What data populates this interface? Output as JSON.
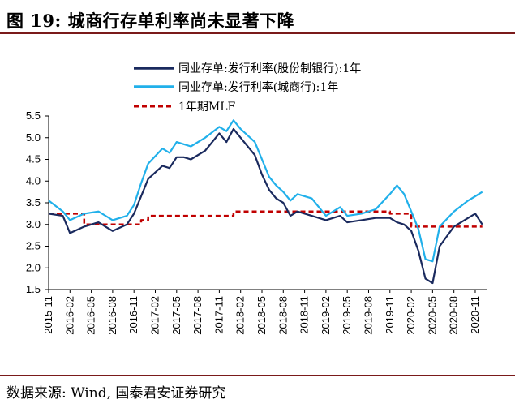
{
  "header": {
    "title": "图 19:  城商行存单利率尚未显著下降"
  },
  "footer": {
    "source": "数据来源:  Wind,  国泰君安证券研究"
  },
  "colors": {
    "navy": "#1a2a5e",
    "cyan": "#21b0ea",
    "mlf": "#c00000",
    "rule": "#7a1a1a"
  },
  "chart_data": {
    "type": "line",
    "title": "",
    "xlabel": "",
    "ylabel": "",
    "ylim": [
      1.5,
      5.5
    ],
    "yticks": [
      1.5,
      2.0,
      2.5,
      3.0,
      3.5,
      4.0,
      4.5,
      5.0,
      5.5
    ],
    "ytick_labels": [
      "1.5",
      "2.0",
      "2.5",
      "3.0",
      "3.5",
      "4.0",
      "4.5",
      "5.0",
      "5.5"
    ],
    "xticks": [
      "2015-11",
      "2016-02",
      "2016-05",
      "2016-08",
      "2016-11",
      "2017-02",
      "2017-05",
      "2017-08",
      "2017-11",
      "2018-02",
      "2018-05",
      "2018-08",
      "2018-11",
      "2019-02",
      "2019-05",
      "2019-08",
      "2019-11",
      "2020-02",
      "2020-05",
      "2020-08",
      "2020-11"
    ],
    "grid": false,
    "legend": "top-left",
    "series": [
      {
        "name": "同业存单:发行利率(股份制银行):1年",
        "color": "#1a2a5e",
        "style": "solid",
        "x": [
          "2015-11",
          "2016-01",
          "2016-02",
          "2016-04",
          "2016-06",
          "2016-08",
          "2016-10",
          "2016-11",
          "2016-12",
          "2017-01",
          "2017-03",
          "2017-04",
          "2017-05",
          "2017-06",
          "2017-07",
          "2017-09",
          "2017-11",
          "2017-12",
          "2018-01",
          "2018-02",
          "2018-04",
          "2018-05",
          "2018-06",
          "2018-07",
          "2018-08",
          "2018-09",
          "2018-10",
          "2018-12",
          "2019-02",
          "2019-04",
          "2019-05",
          "2019-07",
          "2019-09",
          "2019-11",
          "2019-12",
          "2020-01",
          "2020-02",
          "2020-03",
          "2020-04",
          "2020-05",
          "2020-06",
          "2020-08",
          "2020-10",
          "2020-11",
          "2020-12"
        ],
        "y": [
          3.25,
          3.2,
          2.8,
          2.95,
          3.05,
          2.85,
          3.0,
          3.25,
          3.65,
          4.05,
          4.35,
          4.3,
          4.55,
          4.55,
          4.5,
          4.7,
          5.1,
          4.9,
          5.2,
          5.0,
          4.6,
          4.15,
          3.8,
          3.6,
          3.5,
          3.2,
          3.3,
          3.2,
          3.1,
          3.2,
          3.05,
          3.1,
          3.15,
          3.15,
          3.05,
          3.0,
          2.85,
          2.4,
          1.75,
          1.65,
          2.5,
          2.95,
          3.15,
          3.25,
          3.0
        ]
      },
      {
        "name": "同业存单:发行利率(城商行):1年",
        "color": "#21b0ea",
        "style": "solid",
        "x": [
          "2015-11",
          "2016-01",
          "2016-02",
          "2016-04",
          "2016-06",
          "2016-08",
          "2016-10",
          "2016-11",
          "2016-12",
          "2017-01",
          "2017-03",
          "2017-04",
          "2017-05",
          "2017-06",
          "2017-07",
          "2017-09",
          "2017-11",
          "2017-12",
          "2018-01",
          "2018-02",
          "2018-04",
          "2018-05",
          "2018-06",
          "2018-07",
          "2018-08",
          "2018-09",
          "2018-10",
          "2018-12",
          "2019-02",
          "2019-04",
          "2019-05",
          "2019-07",
          "2019-09",
          "2019-11",
          "2019-12",
          "2020-01",
          "2020-02",
          "2020-03",
          "2020-04",
          "2020-05",
          "2020-06",
          "2020-08",
          "2020-10",
          "2020-11",
          "2020-12"
        ],
        "y": [
          3.55,
          3.3,
          3.1,
          3.25,
          3.3,
          3.1,
          3.2,
          3.45,
          3.95,
          4.4,
          4.75,
          4.65,
          4.9,
          4.85,
          4.8,
          5.0,
          5.25,
          5.15,
          5.4,
          5.2,
          4.9,
          4.5,
          4.1,
          3.9,
          3.75,
          3.55,
          3.7,
          3.6,
          3.2,
          3.4,
          3.2,
          3.25,
          3.35,
          3.7,
          3.9,
          3.7,
          3.3,
          2.9,
          2.2,
          2.15,
          2.95,
          3.3,
          3.55,
          3.65,
          3.75
        ]
      },
      {
        "name": "1年期MLF",
        "color": "#c00000",
        "style": "dashed",
        "x": [
          "2015-11",
          "2016-04",
          "2016-04",
          "2016-12",
          "2016-12",
          "2017-01",
          "2017-01",
          "2018-01",
          "2018-01",
          "2019-11",
          "2019-11",
          "2020-02",
          "2020-02",
          "2020-12"
        ],
        "y": [
          3.25,
          3.25,
          3.0,
          3.0,
          3.1,
          3.1,
          3.2,
          3.2,
          3.3,
          3.3,
          3.25,
          3.25,
          2.95,
          2.95
        ]
      }
    ]
  }
}
